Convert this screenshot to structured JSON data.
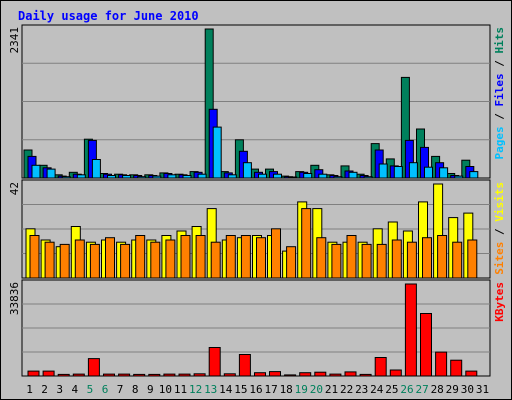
{
  "chart_data": [
    {
      "type": "bar",
      "title": "Daily usage for June 2010",
      "panel": "top",
      "ymax_label": "2341",
      "ylim": [
        0,
        2341
      ],
      "legend": [
        "Pages",
        "Files",
        "Hits"
      ],
      "categories": [
        "1",
        "2",
        "3",
        "4",
        "5",
        "6",
        "7",
        "8",
        "9",
        "10",
        "11",
        "12",
        "13",
        "14",
        "15",
        "16",
        "17",
        "18",
        "19",
        "20",
        "21",
        "22",
        "23",
        "24",
        "25",
        "26",
        "27",
        "28",
        "29",
        "30",
        "31"
      ],
      "series": [
        {
          "name": "Hits",
          "values": [
            440,
            200,
            50,
            90,
            610,
            70,
            60,
            50,
            50,
            80,
            60,
            100,
            2341,
            100,
            600,
            140,
            140,
            30,
            100,
            200,
            50,
            190,
            60,
            540,
            300,
            1580,
            770,
            340,
            70,
            280,
            0
          ]
        },
        {
          "name": "Files",
          "values": [
            340,
            160,
            30,
            60,
            590,
            60,
            50,
            40,
            40,
            70,
            50,
            90,
            1080,
            80,
            420,
            90,
            100,
            20,
            90,
            130,
            40,
            110,
            40,
            440,
            190,
            590,
            480,
            240,
            40,
            180,
            0
          ]
        },
        {
          "name": "Pages",
          "values": [
            200,
            140,
            20,
            50,
            290,
            40,
            40,
            20,
            30,
            50,
            40,
            60,
            800,
            50,
            240,
            60,
            60,
            10,
            70,
            60,
            20,
            90,
            20,
            220,
            180,
            240,
            170,
            160,
            30,
            100,
            0
          ]
        }
      ]
    },
    {
      "type": "bar",
      "panel": "middle",
      "ymax_label": "42",
      "ylim": [
        0,
        42
      ],
      "legend": [
        "Sites",
        "Visits"
      ],
      "categories": [
        "1",
        "2",
        "3",
        "4",
        "5",
        "6",
        "7",
        "8",
        "9",
        "10",
        "11",
        "12",
        "13",
        "14",
        "15",
        "16",
        "17",
        "18",
        "19",
        "20",
        "21",
        "22",
        "23",
        "24",
        "25",
        "26",
        "27",
        "28",
        "29",
        "30",
        "31"
      ],
      "series": [
        {
          "name": "Visits",
          "values": [
            22,
            17,
            14,
            23,
            16,
            17,
            16,
            17,
            17,
            19,
            21,
            23,
            31,
            17,
            18,
            19,
            19,
            12,
            34,
            31,
            16,
            16,
            16,
            22,
            25,
            21,
            34,
            42,
            27,
            29,
            0
          ]
        },
        {
          "name": "Sites",
          "values": [
            19,
            16,
            15,
            17,
            15,
            18,
            15,
            19,
            16,
            17,
            19,
            19,
            16,
            19,
            19,
            18,
            22,
            14,
            31,
            18,
            15,
            19,
            15,
            15,
            17,
            16,
            18,
            19,
            16,
            17,
            0
          ]
        }
      ]
    },
    {
      "type": "bar",
      "panel": "bottom",
      "ymax_label": "33836",
      "ylim": [
        0,
        33836
      ],
      "legend": [
        "KBytes"
      ],
      "categories": [
        "1",
        "2",
        "3",
        "4",
        "5",
        "6",
        "7",
        "8",
        "9",
        "10",
        "11",
        "12",
        "13",
        "14",
        "15",
        "16",
        "17",
        "18",
        "19",
        "20",
        "21",
        "22",
        "23",
        "24",
        "25",
        "26",
        "27",
        "28",
        "29",
        "30",
        "31"
      ],
      "series": [
        {
          "name": "KBytes",
          "values": [
            1800,
            1800,
            600,
            700,
            6400,
            700,
            700,
            600,
            600,
            700,
            700,
            800,
            10500,
            800,
            7900,
            1200,
            1600,
            400,
            1200,
            1400,
            700,
            1500,
            600,
            6800,
            2200,
            33836,
            23000,
            8800,
            5800,
            1800,
            0
          ]
        }
      ]
    }
  ],
  "colors": {
    "hits": "#00805c",
    "files": "#0000ff",
    "pages": "#00c0ff",
    "visits": "#ffff00",
    "sites": "#ff8000",
    "kbytes": "#ff0000",
    "title": "#0000ff",
    "weekend_label": "#00805c"
  },
  "weekend_days": [
    "5",
    "6",
    "12",
    "13",
    "19",
    "20",
    "26",
    "27"
  ]
}
